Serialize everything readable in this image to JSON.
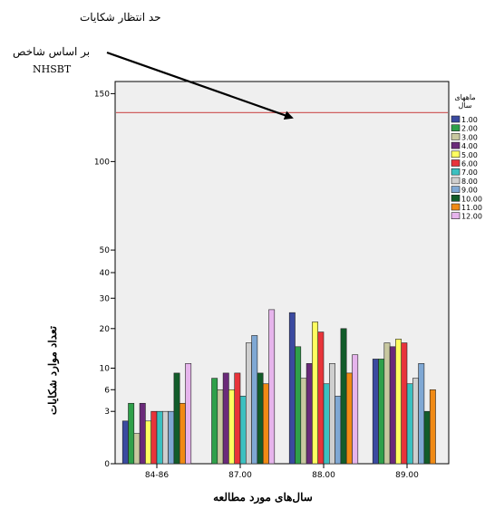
{
  "annotation": {
    "line1": "حد انتظار شکایات",
    "line2": "بر اساس شاخص",
    "line3": "NHSBT"
  },
  "chart_data": {
    "type": "bar",
    "categories": [
      "84-86",
      "87.00",
      "88.00",
      "89.00"
    ],
    "series": [
      {
        "name": "1.00",
        "color": "#3b4aa0",
        "values": [
          2,
          0,
          25,
          12
        ]
      },
      {
        "name": "2.00",
        "color": "#2fa04a",
        "values": [
          4,
          8,
          15,
          12
        ]
      },
      {
        "name": "3.00",
        "color": "#c8c8a0",
        "values": [
          1,
          6,
          8,
          16
        ]
      },
      {
        "name": "4.00",
        "color": "#6a2a7a",
        "values": [
          4,
          9,
          11,
          15
        ]
      },
      {
        "name": "5.00",
        "color": "#ffff60",
        "values": [
          2,
          6,
          22,
          17
        ]
      },
      {
        "name": "6.00",
        "color": "#e8343a",
        "values": [
          3,
          9,
          19,
          16
        ]
      },
      {
        "name": "7.00",
        "color": "#3cc0c0",
        "values": [
          3,
          5,
          7,
          7
        ]
      },
      {
        "name": "8.00",
        "color": "#cfcfcf",
        "values": [
          3,
          16,
          11,
          8
        ]
      },
      {
        "name": "9.00",
        "color": "#7fa8d4",
        "values": [
          3,
          18,
          5,
          11
        ]
      },
      {
        "name": "10.00",
        "color": "#125c2a",
        "values": [
          9,
          9,
          20,
          3
        ]
      },
      {
        "name": "11.00",
        "color": "#f08a14",
        "values": [
          4,
          7,
          9,
          6
        ]
      },
      {
        "name": "12.00",
        "color": "#e6b4ec",
        "values": [
          11,
          26,
          13,
          0
        ]
      }
    ],
    "reference_line": {
      "value": 135,
      "color": "#d06060"
    },
    "y_ticks": [
      0,
      3,
      6,
      10,
      20,
      30,
      40,
      50,
      100,
      150
    ],
    "y_scale": "sqrt",
    "ylim": [
      0,
      160
    ],
    "xlabel": "سال‌های مورد مطالعه",
    "ylabel": "تعداد موارد شکایات",
    "legend_title": "ماههای سال",
    "legend_position": "right",
    "background": "#efefef"
  }
}
